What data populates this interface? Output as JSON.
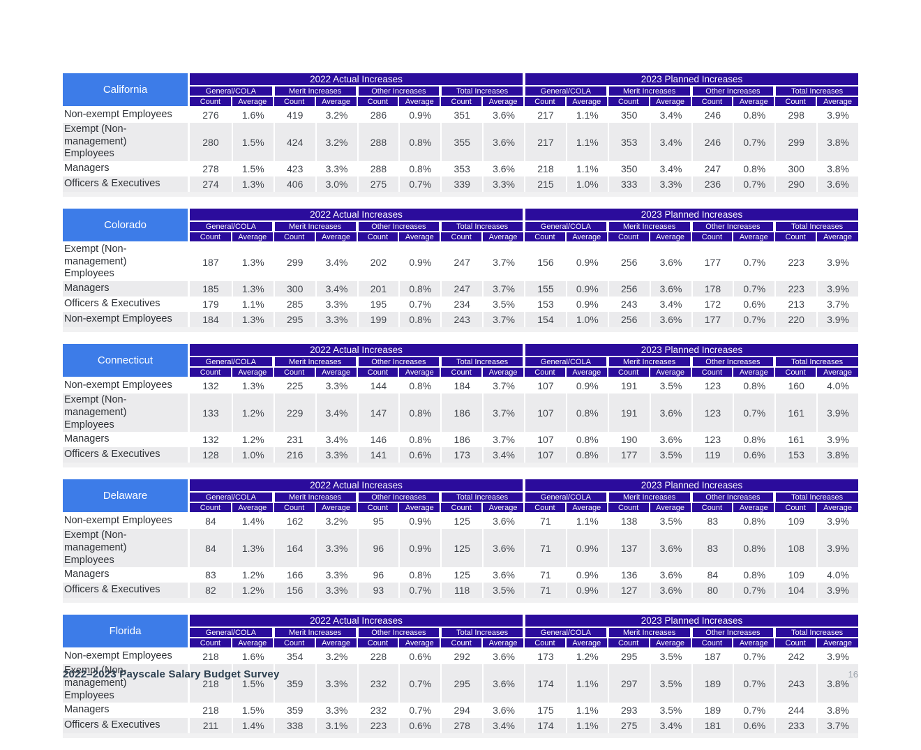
{
  "headers": {
    "year_2022": "2022 Actual Increases",
    "year_2023": "2023 Planned Increases",
    "groups": [
      "General/COLA",
      "Merit Increases",
      "Other Increases",
      "Total Increases"
    ],
    "count": "Count",
    "average": "Average"
  },
  "colors": {
    "state_header_blue": "#3d7ce8",
    "band_indigo": "#2b0c9c",
    "row_alt_gray": "#ebebed",
    "bottom_strip": "#f1f1f2",
    "data_text": "#42464d",
    "footer_text": "#2d4050"
  },
  "tables": [
    {
      "state": "California",
      "rows": [
        {
          "label": "Non-exempt Employees",
          "values": [
            "276",
            "1.6%",
            "419",
            "3.2%",
            "286",
            "0.9%",
            "351",
            "3.6%",
            "217",
            "1.1%",
            "350",
            "3.4%",
            "246",
            "0.8%",
            "298",
            "3.9%"
          ]
        },
        {
          "label": "Exempt (Non-management) Employees",
          "values": [
            "280",
            "1.5%",
            "424",
            "3.2%",
            "288",
            "0.8%",
            "355",
            "3.6%",
            "217",
            "1.1%",
            "353",
            "3.4%",
            "246",
            "0.7%",
            "299",
            "3.8%"
          ]
        },
        {
          "label": "Managers",
          "values": [
            "278",
            "1.5%",
            "423",
            "3.3%",
            "288",
            "0.8%",
            "353",
            "3.6%",
            "218",
            "1.1%",
            "350",
            "3.4%",
            "247",
            "0.8%",
            "300",
            "3.8%"
          ]
        },
        {
          "label": "Officers & Executives",
          "values": [
            "274",
            "1.3%",
            "406",
            "3.0%",
            "275",
            "0.7%",
            "339",
            "3.3%",
            "215",
            "1.0%",
            "333",
            "3.3%",
            "236",
            "0.7%",
            "290",
            "3.6%"
          ]
        }
      ]
    },
    {
      "state": "Colorado",
      "rows": [
        {
          "label": "Exempt (Non-management) Employees",
          "values": [
            "187",
            "1.3%",
            "299",
            "3.4%",
            "202",
            "0.9%",
            "247",
            "3.7%",
            "156",
            "0.9%",
            "256",
            "3.6%",
            "177",
            "0.7%",
            "223",
            "3.9%"
          ]
        },
        {
          "label": "Managers",
          "values": [
            "185",
            "1.3%",
            "300",
            "3.4%",
            "201",
            "0.8%",
            "247",
            "3.7%",
            "155",
            "0.9%",
            "256",
            "3.6%",
            "178",
            "0.7%",
            "223",
            "3.9%"
          ]
        },
        {
          "label": "Officers & Executives",
          "values": [
            "179",
            "1.1%",
            "285",
            "3.3%",
            "195",
            "0.7%",
            "234",
            "3.5%",
            "153",
            "0.9%",
            "243",
            "3.4%",
            "172",
            "0.6%",
            "213",
            "3.7%"
          ]
        },
        {
          "label": "Non-exempt Employees",
          "values": [
            "184",
            "1.3%",
            "295",
            "3.3%",
            "199",
            "0.8%",
            "243",
            "3.7%",
            "154",
            "1.0%",
            "256",
            "3.6%",
            "177",
            "0.7%",
            "220",
            "3.9%"
          ]
        }
      ]
    },
    {
      "state": "Connecticut",
      "rows": [
        {
          "label": "Non-exempt Employees",
          "values": [
            "132",
            "1.3%",
            "225",
            "3.3%",
            "144",
            "0.8%",
            "184",
            "3.7%",
            "107",
            "0.9%",
            "191",
            "3.5%",
            "123",
            "0.8%",
            "160",
            "4.0%"
          ]
        },
        {
          "label": "Exempt (Non-management) Employees",
          "values": [
            "133",
            "1.2%",
            "229",
            "3.4%",
            "147",
            "0.8%",
            "186",
            "3.7%",
            "107",
            "0.8%",
            "191",
            "3.6%",
            "123",
            "0.7%",
            "161",
            "3.9%"
          ]
        },
        {
          "label": "Managers",
          "values": [
            "132",
            "1.2%",
            "231",
            "3.4%",
            "146",
            "0.8%",
            "186",
            "3.7%",
            "107",
            "0.8%",
            "190",
            "3.6%",
            "123",
            "0.8%",
            "161",
            "3.9%"
          ]
        },
        {
          "label": "Officers & Executives",
          "values": [
            "128",
            "1.0%",
            "216",
            "3.3%",
            "141",
            "0.6%",
            "173",
            "3.4%",
            "107",
            "0.8%",
            "177",
            "3.5%",
            "119",
            "0.6%",
            "153",
            "3.8%"
          ]
        }
      ]
    },
    {
      "state": "Delaware",
      "rows": [
        {
          "label": "Non-exempt Employees",
          "values": [
            "84",
            "1.4%",
            "162",
            "3.2%",
            "95",
            "0.9%",
            "125",
            "3.6%",
            "71",
            "1.1%",
            "138",
            "3.5%",
            "83",
            "0.8%",
            "109",
            "3.9%"
          ]
        },
        {
          "label": "Exempt (Non-management) Employees",
          "values": [
            "84",
            "1.3%",
            "164",
            "3.3%",
            "96",
            "0.9%",
            "125",
            "3.6%",
            "71",
            "0.9%",
            "137",
            "3.6%",
            "83",
            "0.8%",
            "108",
            "3.9%"
          ]
        },
        {
          "label": "Managers",
          "values": [
            "83",
            "1.2%",
            "166",
            "3.3%",
            "96",
            "0.8%",
            "125",
            "3.6%",
            "71",
            "0.9%",
            "136",
            "3.6%",
            "84",
            "0.8%",
            "109",
            "4.0%"
          ]
        },
        {
          "label": "Officers & Executives",
          "values": [
            "82",
            "1.2%",
            "156",
            "3.3%",
            "93",
            "0.7%",
            "118",
            "3.5%",
            "71",
            "0.9%",
            "127",
            "3.6%",
            "80",
            "0.7%",
            "104",
            "3.9%"
          ]
        }
      ]
    },
    {
      "state": "Florida",
      "rows": [
        {
          "label": "Non-exempt Employees",
          "values": [
            "218",
            "1.6%",
            "354",
            "3.2%",
            "228",
            "0.6%",
            "292",
            "3.6%",
            "173",
            "1.2%",
            "295",
            "3.5%",
            "187",
            "0.7%",
            "242",
            "3.9%"
          ]
        },
        {
          "label": "Exempt (Non-management) Employees",
          "values": [
            "218",
            "1.5%",
            "359",
            "3.3%",
            "232",
            "0.7%",
            "295",
            "3.6%",
            "174",
            "1.1%",
            "297",
            "3.5%",
            "189",
            "0.7%",
            "243",
            "3.8%"
          ]
        },
        {
          "label": "Managers",
          "values": [
            "218",
            "1.5%",
            "359",
            "3.3%",
            "232",
            "0.7%",
            "294",
            "3.6%",
            "175",
            "1.1%",
            "293",
            "3.5%",
            "189",
            "0.7%",
            "244",
            "3.8%"
          ]
        },
        {
          "label": "Officers & Executives",
          "values": [
            "211",
            "1.4%",
            "338",
            "3.1%",
            "223",
            "0.6%",
            "278",
            "3.4%",
            "174",
            "1.1%",
            "275",
            "3.4%",
            "181",
            "0.6%",
            "233",
            "3.7%"
          ]
        }
      ]
    }
  ],
  "footer": {
    "title": "2022–2023 Payscale Salary Budget Survey",
    "page_number": "16"
  }
}
